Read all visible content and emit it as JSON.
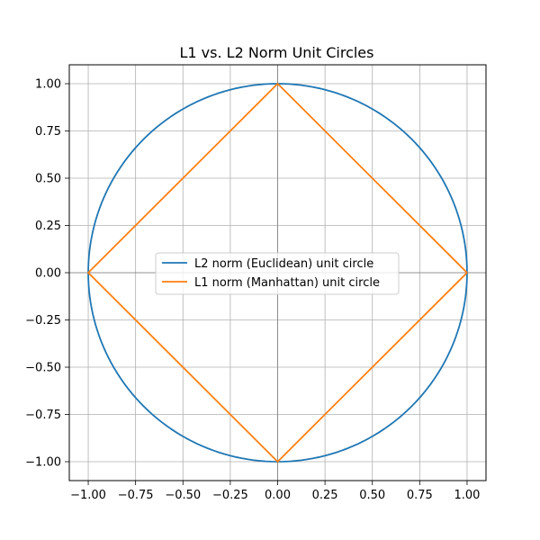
{
  "chart_data": {
    "type": "line",
    "title": "L1 vs. L2 Norm Unit Circles",
    "xlabel": "",
    "ylabel": "",
    "xlim": [
      -1.1,
      1.1
    ],
    "ylim": [
      -1.1,
      1.1
    ],
    "grid": true,
    "axhline_y": 0,
    "axvline_x": 0,
    "legend_position": "center",
    "x_ticks": [
      -1.0,
      -0.75,
      -0.5,
      -0.25,
      0.0,
      0.25,
      0.5,
      0.75,
      1.0
    ],
    "x_tick_labels": [
      "−1.00",
      "−0.75",
      "−0.50",
      "−0.25",
      "0.00",
      "0.25",
      "0.50",
      "0.75",
      "1.00"
    ],
    "y_ticks": [
      -1.0,
      -0.75,
      -0.5,
      -0.25,
      0.0,
      0.25,
      0.5,
      0.75,
      1.0
    ],
    "y_tick_labels": [
      "−1.00",
      "−0.75",
      "−0.50",
      "−0.25",
      "0.00",
      "0.25",
      "0.50",
      "0.75",
      "1.00"
    ],
    "series": [
      {
        "name": "L2 norm (Euclidean) unit circle",
        "color": "#1f77b4",
        "shape": "circle",
        "radius": 1
      },
      {
        "name": "L1 norm (Manhattan) unit circle",
        "color": "#ff7f0e",
        "shape": "diamond",
        "x": [
          1,
          0,
          -1,
          0,
          1
        ],
        "y": [
          0,
          1,
          0,
          -1,
          0
        ]
      }
    ]
  }
}
